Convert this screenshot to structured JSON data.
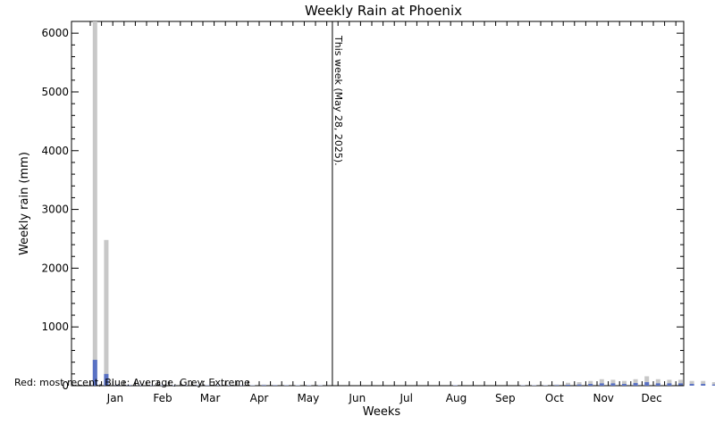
{
  "chart_data": {
    "type": "bar",
    "title": "Weekly Rain at Phoenix",
    "xlabel": "Weeks",
    "ylabel": "Weekly rain (mm)",
    "ylim": [
      0,
      6200
    ],
    "yticks": [
      0,
      1000,
      2000,
      3000,
      4000,
      5000,
      6000
    ],
    "month_labels": [
      "Jan",
      "Feb",
      "Mar",
      "Apr",
      "May",
      "Jun",
      "Jul",
      "Aug",
      "Sep",
      "Oct",
      "Nov",
      "Dec"
    ],
    "marker": {
      "week": 21.5,
      "label": "This week (May 28, 2025)."
    },
    "legend_note": "Red: most recent, Blue: Average, Grey: Extreme",
    "grid": false,
    "colors": {
      "extreme": "#c8c8c8",
      "average": "#5a72c4",
      "recent": "#d02020"
    },
    "series": [
      {
        "name": "Extreme",
        "values": [
          6200,
          2480,
          20,
          15,
          10,
          10,
          12,
          8,
          10,
          12,
          10,
          12,
          10,
          10,
          8,
          20,
          15,
          12,
          8,
          10,
          10,
          0,
          0,
          0,
          0,
          0,
          0,
          0,
          0,
          0,
          0,
          0,
          10,
          0,
          0,
          0,
          0,
          0,
          10,
          10,
          10,
          20,
          50,
          60,
          80,
          110,
          100,
          80,
          110,
          160,
          110,
          100,
          100,
          80,
          80,
          60
        ]
      },
      {
        "name": "Average",
        "values": [
          440,
          200,
          10,
          8,
          5,
          5,
          5,
          4,
          5,
          5,
          5,
          5,
          5,
          5,
          4,
          8,
          6,
          5,
          4,
          4,
          4,
          0,
          0,
          0,
          0,
          0,
          0,
          0,
          0,
          0,
          0,
          0,
          5,
          0,
          0,
          0,
          0,
          0,
          4,
          4,
          4,
          8,
          15,
          20,
          30,
          40,
          40,
          30,
          45,
          60,
          40,
          40,
          40,
          30,
          30,
          20
        ]
      }
    ]
  }
}
